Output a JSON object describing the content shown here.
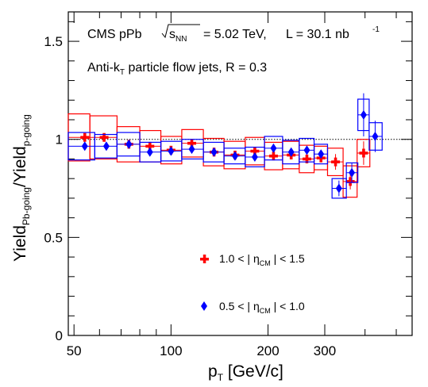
{
  "chart_data": {
    "type": "scatter",
    "title": "",
    "experiment": "CMS pPb",
    "energy_label": "= 5.02 TeV,",
    "energy_symbol": "s",
    "energy_subscript": "NN",
    "lumi_label": "L = 30.1 nb",
    "lumi_exponent": "-1",
    "jet_prefix": "Anti-k",
    "jet_subscript": "T",
    "jet_suffix": " particle flow jets,  R = 0.3",
    "xlabel_main": "p",
    "xlabel_sub": "T",
    "xlabel_unit": " [GeV/c]",
    "ylabel_yield1": "Yield",
    "ylabel_sub1": "Pb-going",
    "ylabel_slash": "/Yield",
    "ylabel_sub2": "p-going",
    "x_scale": "log",
    "xlim": [
      48,
      560
    ],
    "ylim": [
      0,
      1.65
    ],
    "x_ticks": [
      {
        "value": 50,
        "label": "50"
      },
      {
        "value": 100,
        "label": "100"
      },
      {
        "value": 200,
        "label": "200"
      },
      {
        "value": 300,
        "label": "300"
      }
    ],
    "y_ticks": [
      {
        "value": 0,
        "label": "0"
      },
      {
        "value": 0.5,
        "label": "0.5"
      },
      {
        "value": 1,
        "label": "1"
      },
      {
        "value": 1.5,
        "label": "1.5"
      }
    ],
    "reference_line": 1,
    "legend_position": "lower-center",
    "series": [
      {
        "name": "1.0 < | η_CM | < 1.5",
        "label_prefix": "1.0 < | η",
        "label_sub": "CM",
        "label_suffix": " | < 1.5",
        "color": "#ff0000",
        "marker": "plus",
        "points": [
          {
            "x": 54,
            "y": 1.01,
            "err": 0.02,
            "xlo": 48,
            "xhi": 56,
            "sys": 0.12
          },
          {
            "x": 62,
            "y": 1.01,
            "err": 0.01,
            "xlo": 56,
            "xhi": 68,
            "sys": 0.11
          },
          {
            "x": 74,
            "y": 0.975,
            "err": 0.01,
            "xlo": 68,
            "xhi": 80,
            "sys": 0.09
          },
          {
            "x": 86,
            "y": 0.965,
            "err": 0.01,
            "xlo": 80,
            "xhi": 93,
            "sys": 0.08
          },
          {
            "x": 100,
            "y": 0.945,
            "err": 0.01,
            "xlo": 93,
            "xhi": 108,
            "sys": 0.07
          },
          {
            "x": 116,
            "y": 0.98,
            "err": 0.01,
            "xlo": 108,
            "xhi": 126,
            "sys": 0.07
          },
          {
            "x": 136,
            "y": 0.935,
            "err": 0.01,
            "xlo": 126,
            "xhi": 146,
            "sys": 0.07
          },
          {
            "x": 158,
            "y": 0.92,
            "err": 0.01,
            "xlo": 146,
            "xhi": 170,
            "sys": 0.07
          },
          {
            "x": 182,
            "y": 0.94,
            "err": 0.01,
            "xlo": 170,
            "xhi": 195,
            "sys": 0.07
          },
          {
            "x": 208,
            "y": 0.915,
            "err": 0.01,
            "xlo": 195,
            "xhi": 222,
            "sys": 0.07
          },
          {
            "x": 236,
            "y": 0.92,
            "err": 0.02,
            "xlo": 222,
            "xhi": 250,
            "sys": 0.07
          },
          {
            "x": 264,
            "y": 0.9,
            "err": 0.02,
            "xlo": 250,
            "xhi": 278,
            "sys": 0.07
          },
          {
            "x": 292,
            "y": 0.905,
            "err": 0.02,
            "xlo": 278,
            "xhi": 306,
            "sys": 0.06
          },
          {
            "x": 324,
            "y": 0.885,
            "err": 0.04,
            "xlo": 306,
            "xhi": 342,
            "sys": 0.07
          },
          {
            "x": 360,
            "y": 0.785,
            "err": 0.04,
            "xlo": 342,
            "xhi": 378,
            "sys": 0.08
          },
          {
            "x": 396,
            "y": 0.93,
            "err": 0.06,
            "xlo": 378,
            "xhi": 414,
            "sys": 0.07
          }
        ]
      },
      {
        "name": "0.5 < | η_CM | < 1.0",
        "label_prefix": "0.5 < | η",
        "label_sub": "CM",
        "label_suffix": " | < 1.0",
        "color": "#0000ff",
        "marker": "diamond",
        "points": [
          {
            "x": 54,
            "y": 0.965,
            "err": 0.01,
            "xlo": 48,
            "xhi": 58,
            "sys": 0.07
          },
          {
            "x": 63,
            "y": 0.965,
            "err": 0.01,
            "xlo": 58,
            "xhi": 68,
            "sys": 0.06
          },
          {
            "x": 74,
            "y": 0.975,
            "err": 0.01,
            "xlo": 68,
            "xhi": 80,
            "sys": 0.06
          },
          {
            "x": 86,
            "y": 0.935,
            "err": 0.01,
            "xlo": 80,
            "xhi": 93,
            "sys": 0.05
          },
          {
            "x": 100,
            "y": 0.94,
            "err": 0.01,
            "xlo": 93,
            "xhi": 108,
            "sys": 0.05
          },
          {
            "x": 116,
            "y": 0.95,
            "err": 0.01,
            "xlo": 108,
            "xhi": 126,
            "sys": 0.05
          },
          {
            "x": 136,
            "y": 0.935,
            "err": 0.01,
            "xlo": 126,
            "xhi": 146,
            "sys": 0.05
          },
          {
            "x": 158,
            "y": 0.915,
            "err": 0.01,
            "xlo": 146,
            "xhi": 170,
            "sys": 0.04
          },
          {
            "x": 182,
            "y": 0.91,
            "err": 0.02,
            "xlo": 170,
            "xhi": 195,
            "sys": 0.05
          },
          {
            "x": 208,
            "y": 0.955,
            "err": 0.02,
            "xlo": 195,
            "xhi": 222,
            "sys": 0.06
          },
          {
            "x": 236,
            "y": 0.935,
            "err": 0.02,
            "xlo": 222,
            "xhi": 250,
            "sys": 0.06
          },
          {
            "x": 264,
            "y": 0.945,
            "err": 0.02,
            "xlo": 250,
            "xhi": 278,
            "sys": 0.06
          },
          {
            "x": 292,
            "y": 0.925,
            "err": 0.02,
            "xlo": 278,
            "xhi": 306,
            "sys": 0.05
          },
          {
            "x": 332,
            "y": 0.75,
            "err": 0.04,
            "xlo": 316,
            "xhi": 350,
            "sys": 0.05
          },
          {
            "x": 364,
            "y": 0.83,
            "err": 0.05,
            "xlo": 350,
            "xhi": 380,
            "sys": 0.05
          },
          {
            "x": 396,
            "y": 1.125,
            "err": 0.11,
            "xlo": 380,
            "xhi": 412,
            "sys": 0.08
          },
          {
            "x": 430,
            "y": 1.015,
            "err": 0.08,
            "xlo": 412,
            "xhi": 452,
            "sys": 0.07
          }
        ]
      }
    ]
  }
}
